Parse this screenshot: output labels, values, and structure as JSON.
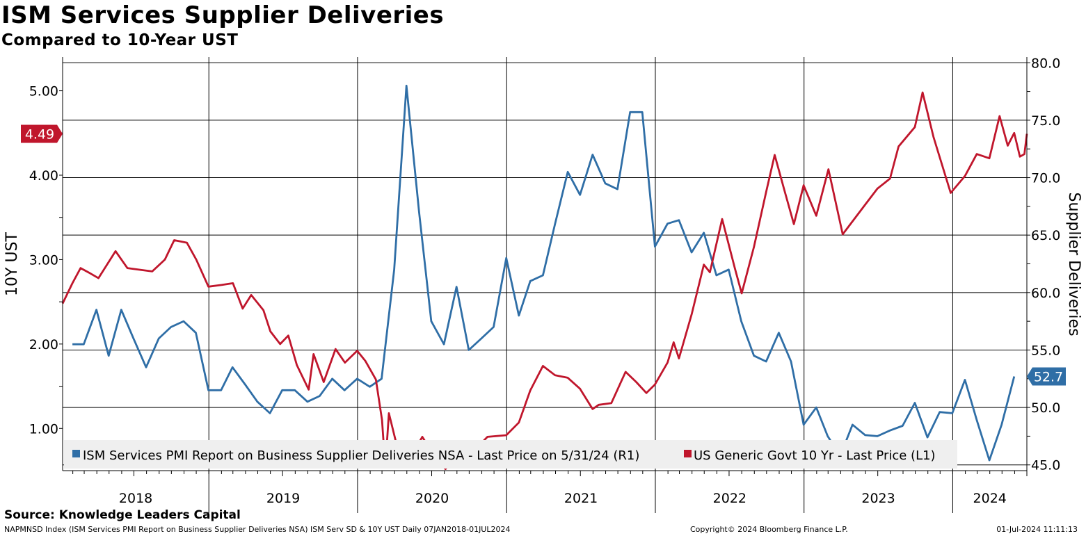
{
  "header": {
    "title": "ISM Services Supplier Deliveries",
    "subtitle": "Compared to 10-Year UST"
  },
  "footer": {
    "source": "Source: Knowledge Leaders Capital",
    "index_line": "NAPMNSD Index (ISM Services PMI Report on Business Supplier Deliveries NSA) ISM Serv SD & 10Y UST  Daily 07JAN2018-01JUL2024",
    "copyright": "Copyright© 2024 Bloomberg Finance L.P.",
    "timestamp": "01-Jul-2024 11:11:13"
  },
  "chart_data": {
    "type": "line",
    "title": "ISM Services Supplier Deliveries",
    "subtitle": "Compared to 10-Year UST",
    "x_range": [
      "2018-01-07",
      "2024-07-01"
    ],
    "years": [
      "2018",
      "2019",
      "2020",
      "2021",
      "2022",
      "2023",
      "2024"
    ],
    "left_axis": {
      "label": "10Y UST",
      "range": [
        0.5,
        5.4
      ],
      "ticks": [
        "1.00",
        "2.00",
        "3.00",
        "4.00",
        "5.00"
      ],
      "last_value_badge": "4.49",
      "badge_value": 4.49
    },
    "right_axis": {
      "label": "Supplier Deliveries",
      "range": [
        44.5,
        80.5
      ],
      "ticks": [
        "45.0",
        "50.0",
        "55.0",
        "60.0",
        "65.0",
        "70.0",
        "75.0",
        "80.0"
      ],
      "last_value_badge": "52.7",
      "badge_value": 52.7
    },
    "grid": true,
    "legend_placement": "bottom",
    "series": [
      {
        "name": "ISM Services PMI Report on Business Supplier Deliveries NSA - Last Price on 5/31/24 (R1)",
        "axis": "right",
        "color": "#2f6ea6",
        "points": [
          [
            "2018-01-31",
            55.5
          ],
          [
            "2018-02-28",
            55.5
          ],
          [
            "2018-03-31",
            58.5
          ],
          [
            "2018-04-30",
            54.5
          ],
          [
            "2018-05-31",
            58.5
          ],
          [
            "2018-06-30",
            56.0
          ],
          [
            "2018-07-31",
            53.5
          ],
          [
            "2018-08-31",
            56.0
          ],
          [
            "2018-09-30",
            57.0
          ],
          [
            "2018-10-31",
            57.5
          ],
          [
            "2018-11-30",
            56.5
          ],
          [
            "2018-12-31",
            51.5
          ],
          [
            "2019-01-31",
            51.5
          ],
          [
            "2019-02-28",
            53.5
          ],
          [
            "2019-03-31",
            52.0
          ],
          [
            "2019-04-30",
            50.5
          ],
          [
            "2019-05-31",
            49.5
          ],
          [
            "2019-06-30",
            51.5
          ],
          [
            "2019-07-31",
            51.5
          ],
          [
            "2019-08-31",
            50.5
          ],
          [
            "2019-09-30",
            51.0
          ],
          [
            "2019-10-31",
            52.5
          ],
          [
            "2019-11-30",
            51.5
          ],
          [
            "2019-12-31",
            52.5
          ],
          [
            "2020-01-31",
            51.8
          ],
          [
            "2020-02-29",
            52.5
          ],
          [
            "2020-03-31",
            62.0
          ],
          [
            "2020-04-30",
            78.0
          ],
          [
            "2020-05-31",
            67.0
          ],
          [
            "2020-06-30",
            57.5
          ],
          [
            "2020-07-31",
            55.5
          ],
          [
            "2020-08-31",
            60.5
          ],
          [
            "2020-09-30",
            55.0
          ],
          [
            "2020-10-31",
            56.0
          ],
          [
            "2020-11-30",
            57.0
          ],
          [
            "2020-12-31",
            63.0
          ],
          [
            "2021-01-31",
            58.0
          ],
          [
            "2021-02-28",
            61.0
          ],
          [
            "2021-03-31",
            61.5
          ],
          [
            "2021-04-30",
            66.0
          ],
          [
            "2021-05-31",
            70.5
          ],
          [
            "2021-06-30",
            68.5
          ],
          [
            "2021-07-31",
            72.0
          ],
          [
            "2021-08-31",
            69.5
          ],
          [
            "2021-09-30",
            69.0
          ],
          [
            "2021-10-31",
            75.7
          ],
          [
            "2021-11-30",
            75.7
          ],
          [
            "2021-12-31",
            64.0
          ],
          [
            "2022-01-31",
            66.0
          ],
          [
            "2022-02-28",
            66.3
          ],
          [
            "2022-03-31",
            63.5
          ],
          [
            "2022-04-30",
            65.2
          ],
          [
            "2022-05-31",
            61.5
          ],
          [
            "2022-06-30",
            62.0
          ],
          [
            "2022-07-31",
            57.5
          ],
          [
            "2022-08-31",
            54.5
          ],
          [
            "2022-09-30",
            54.0
          ],
          [
            "2022-10-31",
            56.5
          ],
          [
            "2022-11-30",
            54.0
          ],
          [
            "2022-12-31",
            48.5
          ],
          [
            "2023-01-31",
            50.0
          ],
          [
            "2023-02-28",
            47.5
          ],
          [
            "2023-03-31",
            45.8
          ],
          [
            "2023-04-30",
            48.5
          ],
          [
            "2023-05-31",
            47.6
          ],
          [
            "2023-06-30",
            47.5
          ],
          [
            "2023-07-31",
            48.0
          ],
          [
            "2023-08-31",
            48.4
          ],
          [
            "2023-09-30",
            50.4
          ],
          [
            "2023-10-31",
            47.4
          ],
          [
            "2023-11-30",
            49.6
          ],
          [
            "2023-12-31",
            49.5
          ],
          [
            "2024-01-31",
            52.4
          ],
          [
            "2024-02-29",
            48.9
          ],
          [
            "2024-03-31",
            45.4
          ],
          [
            "2024-04-30",
            48.5
          ],
          [
            "2024-05-31",
            52.7
          ]
        ]
      },
      {
        "name": "US Generic Govt 10 Yr - Last Price (L1)",
        "axis": "left",
        "color": "#c0162c",
        "points": [
          [
            "2018-01-07",
            2.48
          ],
          [
            "2018-01-31",
            2.72
          ],
          [
            "2018-02-20",
            2.9
          ],
          [
            "2018-03-15",
            2.84
          ],
          [
            "2018-04-05",
            2.78
          ],
          [
            "2018-05-17",
            3.1
          ],
          [
            "2018-06-15",
            2.9
          ],
          [
            "2018-07-15",
            2.88
          ],
          [
            "2018-08-15",
            2.86
          ],
          [
            "2018-09-15",
            3.0
          ],
          [
            "2018-10-08",
            3.23
          ],
          [
            "2018-11-08",
            3.2
          ],
          [
            "2018-12-01",
            3.0
          ],
          [
            "2018-12-31",
            2.68
          ],
          [
            "2019-02-01",
            2.7
          ],
          [
            "2019-03-01",
            2.72
          ],
          [
            "2019-03-25",
            2.42
          ],
          [
            "2019-04-15",
            2.58
          ],
          [
            "2019-05-15",
            2.4
          ],
          [
            "2019-06-01",
            2.15
          ],
          [
            "2019-06-25",
            2.0
          ],
          [
            "2019-07-15",
            2.1
          ],
          [
            "2019-08-05",
            1.75
          ],
          [
            "2019-09-03",
            1.46
          ],
          [
            "2019-09-15",
            1.88
          ],
          [
            "2019-10-10",
            1.55
          ],
          [
            "2019-11-08",
            1.94
          ],
          [
            "2019-12-01",
            1.78
          ],
          [
            "2019-12-31",
            1.92
          ],
          [
            "2020-01-20",
            1.8
          ],
          [
            "2020-02-15",
            1.58
          ],
          [
            "2020-03-01",
            1.1
          ],
          [
            "2020-03-09",
            0.54
          ],
          [
            "2020-03-18",
            1.18
          ],
          [
            "2020-04-15",
            0.63
          ],
          [
            "2020-05-15",
            0.7
          ],
          [
            "2020-06-08",
            0.9
          ],
          [
            "2020-07-15",
            0.62
          ],
          [
            "2020-08-04",
            0.52
          ],
          [
            "2020-09-01",
            0.68
          ],
          [
            "2020-10-15",
            0.75
          ],
          [
            "2020-11-15",
            0.9
          ],
          [
            "2020-12-31",
            0.92
          ],
          [
            "2021-01-31",
            1.07
          ],
          [
            "2021-02-28",
            1.45
          ],
          [
            "2021-03-31",
            1.74
          ],
          [
            "2021-04-30",
            1.63
          ],
          [
            "2021-05-31",
            1.6
          ],
          [
            "2021-06-30",
            1.47
          ],
          [
            "2021-07-31",
            1.23
          ],
          [
            "2021-08-15",
            1.28
          ],
          [
            "2021-09-15",
            1.3
          ],
          [
            "2021-10-20",
            1.67
          ],
          [
            "2021-11-15",
            1.55
          ],
          [
            "2021-12-10",
            1.42
          ],
          [
            "2021-12-31",
            1.52
          ],
          [
            "2022-01-31",
            1.78
          ],
          [
            "2022-02-15",
            2.02
          ],
          [
            "2022-02-28",
            1.83
          ],
          [
            "2022-03-31",
            2.35
          ],
          [
            "2022-04-30",
            2.94
          ],
          [
            "2022-05-15",
            2.85
          ],
          [
            "2022-06-14",
            3.48
          ],
          [
            "2022-07-15",
            2.9
          ],
          [
            "2022-08-01",
            2.6
          ],
          [
            "2022-08-31",
            3.15
          ],
          [
            "2022-09-30",
            3.8
          ],
          [
            "2022-10-21",
            4.24
          ],
          [
            "2022-11-15",
            3.8
          ],
          [
            "2022-12-07",
            3.42
          ],
          [
            "2022-12-31",
            3.88
          ],
          [
            "2023-01-31",
            3.52
          ],
          [
            "2023-03-02",
            4.07
          ],
          [
            "2023-04-06",
            3.3
          ],
          [
            "2023-05-31",
            3.65
          ],
          [
            "2023-06-30",
            3.84
          ],
          [
            "2023-07-31",
            3.96
          ],
          [
            "2023-08-21",
            4.34
          ],
          [
            "2023-09-30",
            4.57
          ],
          [
            "2023-10-19",
            4.98
          ],
          [
            "2023-11-15",
            4.45
          ],
          [
            "2023-12-27",
            3.79
          ],
          [
            "2024-01-31",
            3.99
          ],
          [
            "2024-02-29",
            4.25
          ],
          [
            "2024-03-31",
            4.2
          ],
          [
            "2024-04-25",
            4.7
          ],
          [
            "2024-05-15",
            4.35
          ],
          [
            "2024-05-31",
            4.5
          ],
          [
            "2024-06-14",
            4.22
          ],
          [
            "2024-06-25",
            4.25
          ],
          [
            "2024-07-01",
            4.49
          ]
        ]
      }
    ]
  }
}
